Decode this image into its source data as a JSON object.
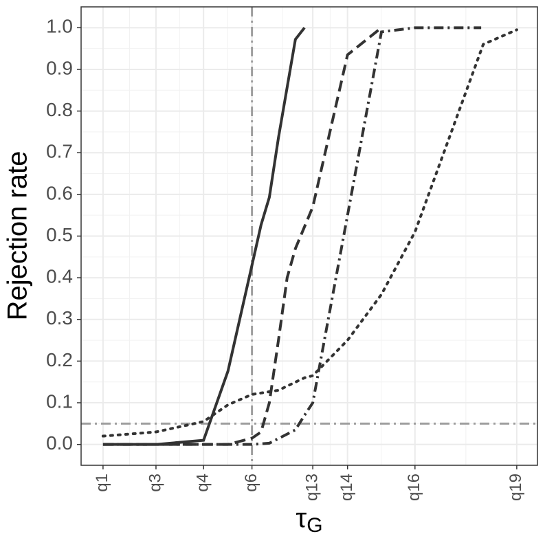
{
  "chart_data": {
    "type": "line",
    "ylabel": "Rejection rate",
    "xlabel": {
      "main": "τ",
      "sub": "G"
    },
    "xlim": [
      -5.3,
      105.0
    ],
    "ylim": [
      -0.05,
      1.05
    ],
    "xticks": [
      {
        "value": 0,
        "label": "q1"
      },
      {
        "value": 12.8,
        "label": "q3"
      },
      {
        "value": 24.3,
        "label": "q4"
      },
      {
        "value": 36.0,
        "label": "q6"
      },
      {
        "value": 50.7,
        "label": "q13"
      },
      {
        "value": 59.1,
        "label": "q14"
      },
      {
        "value": 75.4,
        "label": "q16"
      },
      {
        "value": 100,
        "label": "q19"
      }
    ],
    "yticks": [
      {
        "value": 0,
        "label": "0.0"
      },
      0.1,
      0.2,
      0.3,
      0.4,
      0.5,
      0.6,
      0.7,
      0.8,
      0.9,
      {
        "value": 1,
        "label": "1.0"
      }
    ],
    "grid": true,
    "hline": 0.05,
    "vline": 36.0,
    "reference_color": "#9e9e9e",
    "series": [
      {
        "color": "#333333",
        "dash": "solid",
        "x": [
          0,
          12.8,
          24.3,
          30.2,
          36.0,
          38.2,
          40.2,
          42.4,
          46.5,
          48.7
        ],
        "values": [
          0,
          0,
          0.01,
          0.176,
          0.43,
          0.527,
          0.593,
          0.736,
          0.972,
          1.0
        ]
      },
      {
        "color": "#333333",
        "dash": "dashed",
        "x": [
          0,
          12.8,
          24.3,
          30.2,
          36.0,
          38.2,
          40.2,
          42.4,
          44.5,
          46.5,
          50.7,
          59.1,
          67.3
        ],
        "values": [
          0,
          0,
          0,
          0,
          0.015,
          0.03,
          0.1,
          0.25,
          0.4,
          0.47,
          0.57,
          0.935,
          1.0
        ]
      },
      {
        "color": "#333333",
        "dash": "dotdash",
        "x": [
          0,
          12.8,
          24.3,
          36.0,
          40.2,
          46.5,
          48.7,
          50.7,
          59.1,
          67.3,
          75.4,
          91.4
        ],
        "values": [
          0,
          0,
          0,
          0,
          0.003,
          0.035,
          0.07,
          0.1,
          0.55,
          0.99,
          1.0,
          1.0
        ]
      },
      {
        "color": "#333333",
        "dash": "dotted",
        "x": [
          0,
          12.8,
          24.3,
          30.2,
          36.0,
          42.4,
          48.7,
          50.7,
          59.1,
          67.3,
          75.4,
          91.9,
          100
        ],
        "values": [
          0.02,
          0.03,
          0.055,
          0.095,
          0.12,
          0.13,
          0.16,
          0.165,
          0.25,
          0.36,
          0.51,
          0.96,
          0.995
        ]
      }
    ]
  }
}
